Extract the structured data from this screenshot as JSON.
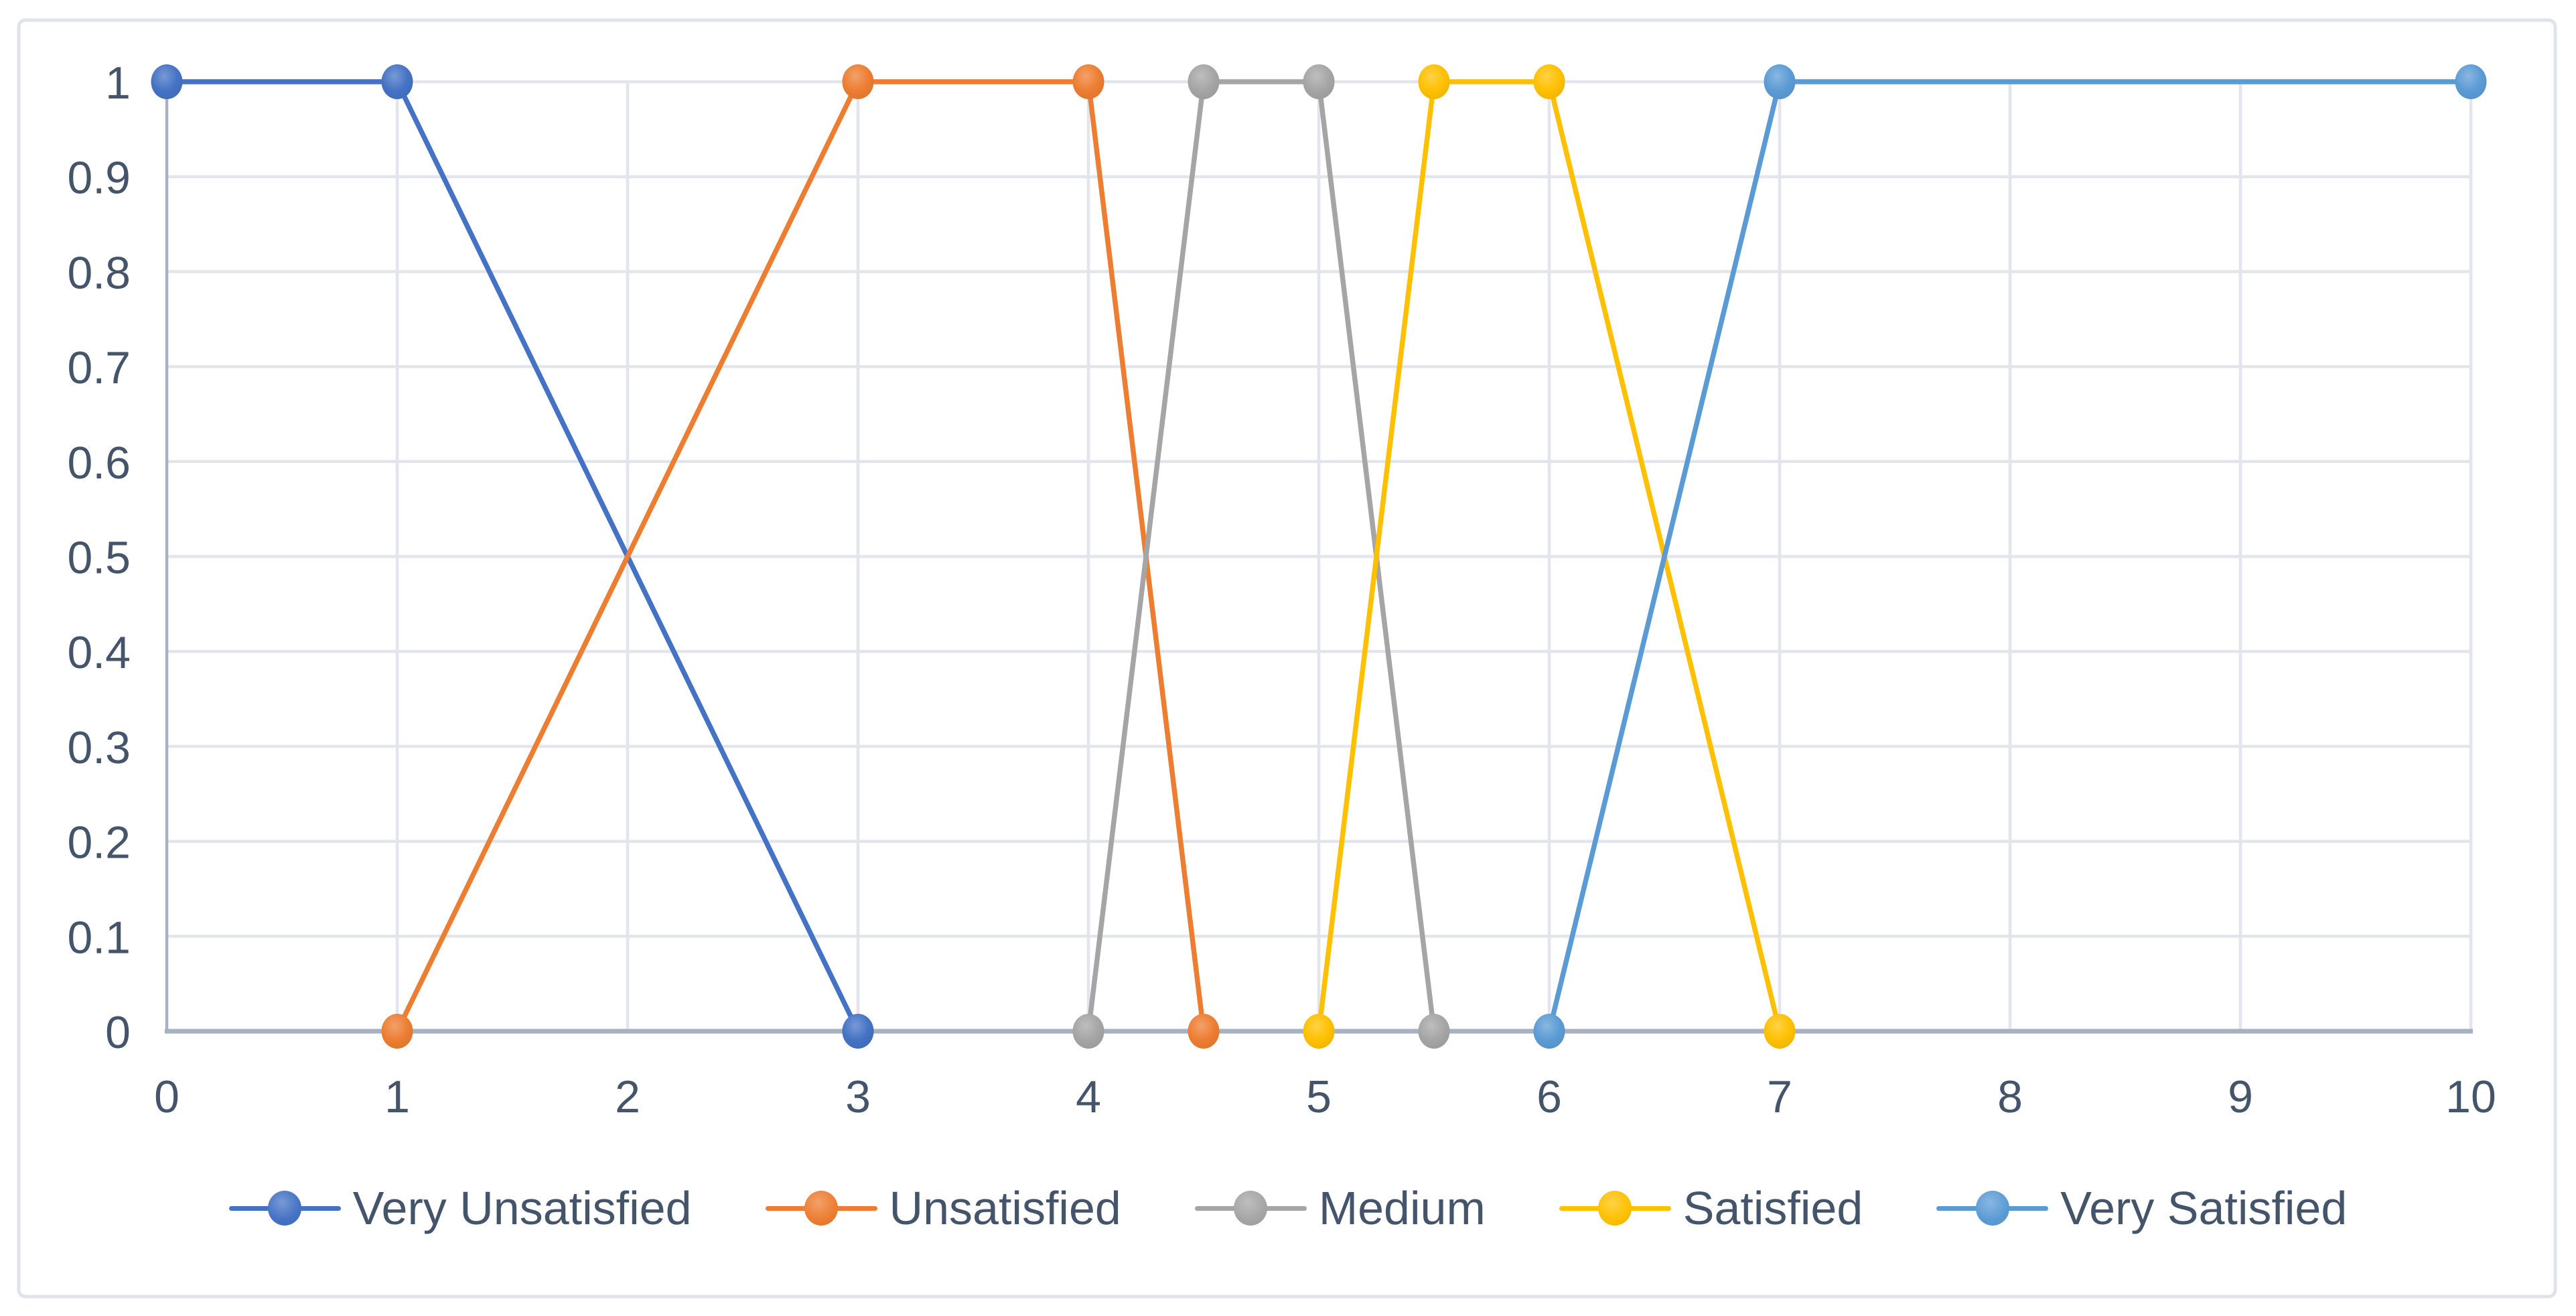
{
  "chart_data": {
    "type": "line",
    "title": "",
    "xlabel": "",
    "ylabel": "",
    "xlim": [
      0,
      10
    ],
    "ylim": [
      0,
      1
    ],
    "grid": true,
    "legend_position": "bottom-center",
    "x_tick_labels": [
      "0",
      "1",
      "2",
      "3",
      "4",
      "5",
      "6",
      "7",
      "8",
      "9",
      "10"
    ],
    "y_tick_labels": [
      "0",
      "0.1",
      "0.2",
      "0.3",
      "0.4",
      "0.5",
      "0.6",
      "0.7",
      "0.8",
      "0.9",
      "1"
    ],
    "series": [
      {
        "name": "Very Unsatisfied",
        "color": "#4472C4",
        "points": [
          [
            0,
            1
          ],
          [
            1,
            1
          ],
          [
            3,
            0
          ]
        ]
      },
      {
        "name": "Unsatisfied",
        "color": "#ED7D31",
        "points": [
          [
            1,
            0
          ],
          [
            3,
            1
          ],
          [
            4,
            1
          ],
          [
            4.5,
            0
          ]
        ]
      },
      {
        "name": "Medium",
        "color": "#A5A5A5",
        "points": [
          [
            4,
            0
          ],
          [
            4.5,
            1
          ],
          [
            5,
            1
          ],
          [
            5.5,
            0
          ]
        ]
      },
      {
        "name": "Satisfied",
        "color": "#FFC000",
        "points": [
          [
            5,
            0
          ],
          [
            5.5,
            1
          ],
          [
            6,
            1
          ],
          [
            7,
            0
          ]
        ]
      },
      {
        "name": "Very Satisfied",
        "color": "#5B9BD5",
        "points": [
          [
            6,
            0
          ],
          [
            7,
            1
          ],
          [
            10,
            1
          ]
        ]
      }
    ]
  },
  "colors": {
    "background": "#FFFFFF",
    "outer_border": "#E0E3E9",
    "gridline": "#E2E5EC",
    "axis_line": "#A8B1C2",
    "tick_text": "#44546A"
  }
}
